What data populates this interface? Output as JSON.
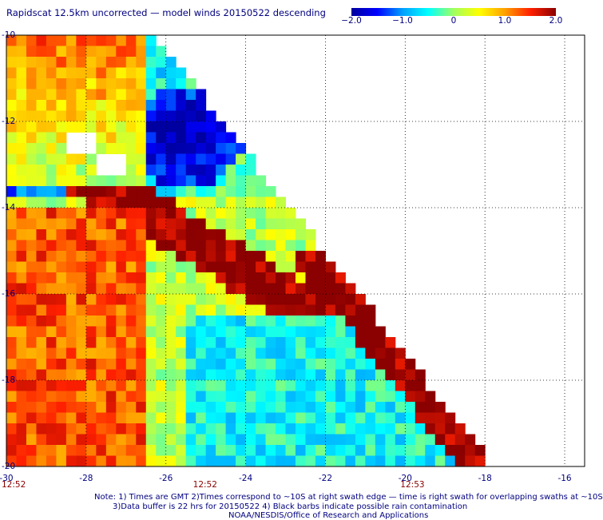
{
  "title": "Rapidscat 12.5km uncorrected — model winds 20150522 descending",
  "colorbar": {
    "labels": [
      "−2.0",
      "−1.0",
      "0",
      "1.0",
      "2.0"
    ],
    "values": [
      -2.0,
      -1.0,
      0,
      1.0,
      2.0
    ],
    "colors": [
      "#0000a0",
      "#0000ff",
      "#00a0ff",
      "#00ffff",
      "#a0ff60",
      "#ffff00",
      "#ffa000",
      "#ff2000",
      "#8b0000"
    ]
  },
  "axes": {
    "x_ticks": [
      {
        "label": "-30",
        "value": -30
      },
      {
        "label": "-28",
        "value": -28
      },
      {
        "label": "-26",
        "value": -26
      },
      {
        "label": "-24",
        "value": -24
      },
      {
        "label": "-22",
        "value": -22
      },
      {
        "label": "-20",
        "value": -20
      },
      {
        "label": "-18",
        "value": -18
      },
      {
        "label": "-16",
        "value": -16
      }
    ],
    "y_ticks": [
      {
        "label": "-10",
        "value": -10
      },
      {
        "label": "-12",
        "value": -12
      },
      {
        "label": "-14",
        "value": -14
      },
      {
        "label": "-16",
        "value": -16
      },
      {
        "label": "-18",
        "value": -18
      },
      {
        "label": "-20",
        "value": -20
      }
    ],
    "xlim": [
      -30,
      -15.5
    ],
    "ylim": [
      -20,
      -10
    ]
  },
  "times": [
    {
      "label": "12:52",
      "lon": -30
    },
    {
      "label": "12:52",
      "lon": -25.2
    },
    {
      "label": "12:53",
      "lon": -20
    }
  ],
  "notes": [
    "Note: 1) Times are GMT 2)Times correspond to ~10S at right swath edge — time is right swath for overlapping swaths at ~10S",
    "3)Data buffer is 22 hrs for 20150522 4) Black barbs indicate possible rain contamination",
    "NOAA/NESDIS/Office of Research and Applications"
  ]
}
